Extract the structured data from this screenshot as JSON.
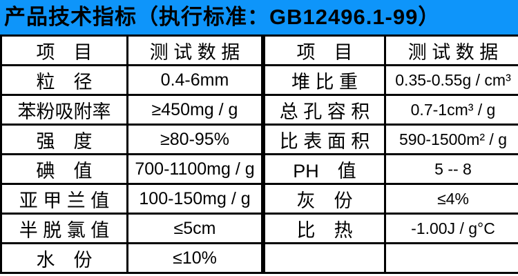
{
  "header": {
    "title": "产品技术指标（执行标准：GB12496.1-99）",
    "bg_color": "#0e95fa",
    "text_color": "#000000"
  },
  "table": {
    "border_color": "#000000",
    "left": {
      "headers": [
        "项　目",
        "测 试 数 据"
      ],
      "rows": [
        {
          "item": "粒　径",
          "value": "0.4-6mm"
        },
        {
          "item": "苯粉吸附率",
          "value": "≥450mg / g"
        },
        {
          "item": "强　度",
          "value": "≥80-95%"
        },
        {
          "item": "碘　值",
          "value": "700-1100mg / g"
        },
        {
          "item": "亚 甲 兰 值",
          "value": "100-150mg / g"
        },
        {
          "item": "半 脱 氯 值",
          "value": "≤5cm"
        },
        {
          "item": "水　份",
          "value": "≤10%"
        }
      ]
    },
    "right": {
      "headers": [
        "项　目",
        "测 试 数 据"
      ],
      "rows": [
        {
          "item": "堆 比 重",
          "value": "0.35-0.55g / cm³"
        },
        {
          "item": "总 孔 容 积",
          "value": "0.7-1cm³ / g"
        },
        {
          "item": "比 表 面 积",
          "value": "590-1500m² / g"
        },
        {
          "item": "PH　值",
          "value": "5 -- 8"
        },
        {
          "item": "灰　份",
          "value": "≤4%"
        },
        {
          "item": "比　热",
          "value": "-1.00J / g°C"
        },
        {
          "item": "",
          "value": ""
        }
      ]
    }
  }
}
